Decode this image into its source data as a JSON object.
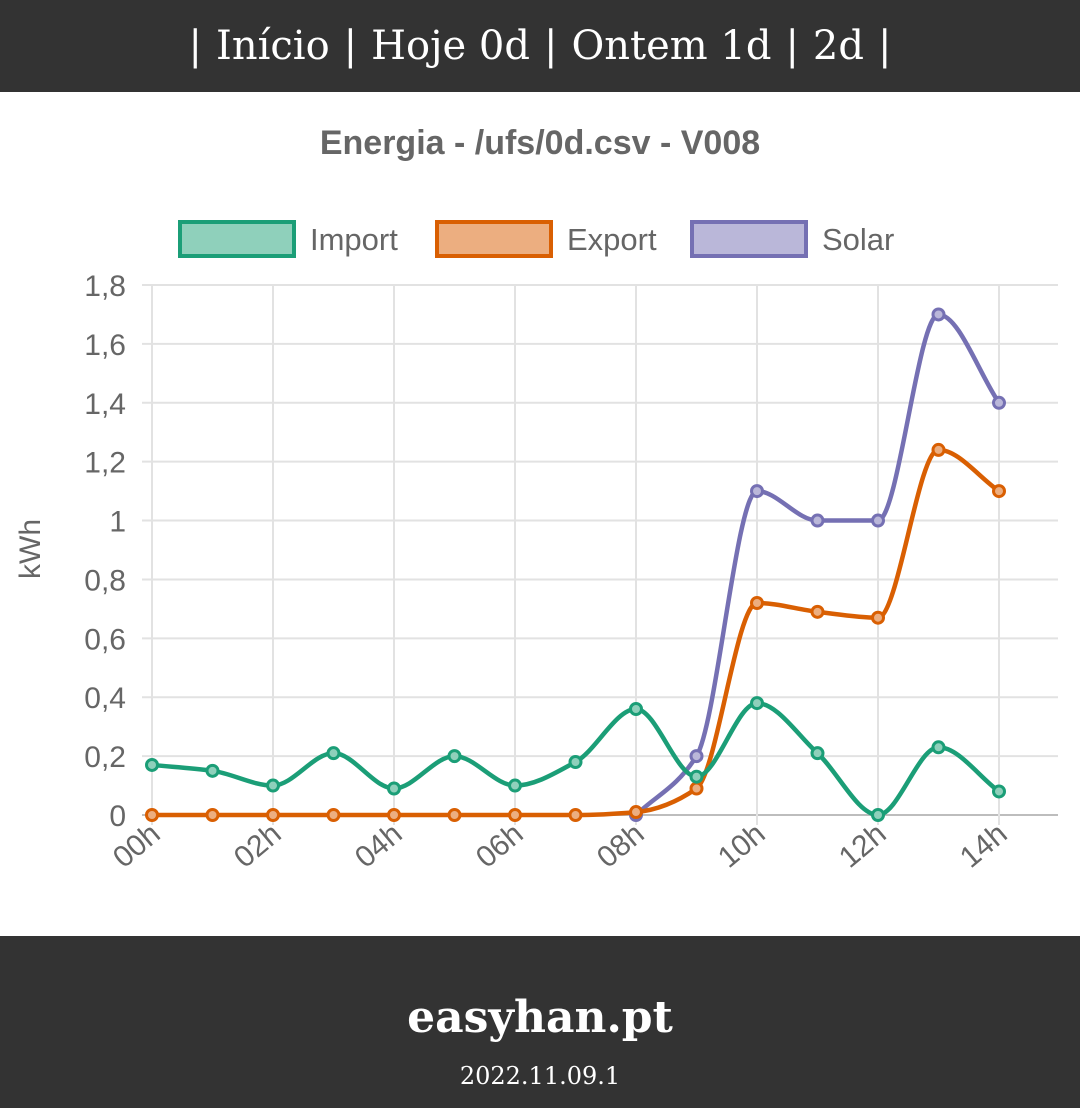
{
  "nav": {
    "items": [
      {
        "label": "Início"
      },
      {
        "label": "Hoje 0d"
      },
      {
        "label": "Ontem 1d"
      },
      {
        "label": "2d"
      }
    ],
    "separator": "|"
  },
  "footer": {
    "brand": "easyhan.pt",
    "version": "2022.11.09.1"
  },
  "chart_data": {
    "type": "line",
    "title": "Energia - /ufs/0d.csv - V008",
    "ylabel": "kWh",
    "xlabel": "",
    "ylim": [
      0,
      1.8
    ],
    "yticks": [
      "0",
      "0,2",
      "0,4",
      "0,6",
      "0,8",
      "1",
      "1,2",
      "1,4",
      "1,6",
      "1,8"
    ],
    "ytick_values": [
      0,
      0.2,
      0.4,
      0.6,
      0.8,
      1.0,
      1.2,
      1.4,
      1.6,
      1.8
    ],
    "x": [
      0,
      1,
      2,
      3,
      4,
      5,
      6,
      7,
      8,
      9,
      10,
      11,
      12,
      13,
      14
    ],
    "xticks": [
      "00h",
      "02h",
      "04h",
      "06h",
      "08h",
      "10h",
      "12h",
      "14h"
    ],
    "xtick_positions": [
      0,
      2,
      4,
      6,
      8,
      10,
      12,
      14
    ],
    "grid": true,
    "legend_position": "top",
    "series": [
      {
        "name": "Import",
        "color": "#1b9e77",
        "fill": "#8fd0bb",
        "values": [
          0.17,
          0.15,
          0.1,
          0.21,
          0.09,
          0.2,
          0.1,
          0.18,
          0.36,
          0.13,
          0.38,
          0.21,
          0.0,
          0.23,
          0.08
        ]
      },
      {
        "name": "Export",
        "color": "#d95f02",
        "fill": "#ecae80",
        "values": [
          0,
          0,
          0,
          0,
          0,
          0,
          0,
          0,
          0.01,
          0.09,
          0.72,
          0.69,
          0.67,
          1.24,
          1.1
        ]
      },
      {
        "name": "Solar",
        "color": "#7570b3",
        "fill": "#bab7d9",
        "values": [
          null,
          null,
          null,
          null,
          null,
          null,
          null,
          null,
          0.0,
          0.2,
          1.1,
          1.0,
          1.0,
          1.7,
          1.4
        ]
      }
    ]
  }
}
